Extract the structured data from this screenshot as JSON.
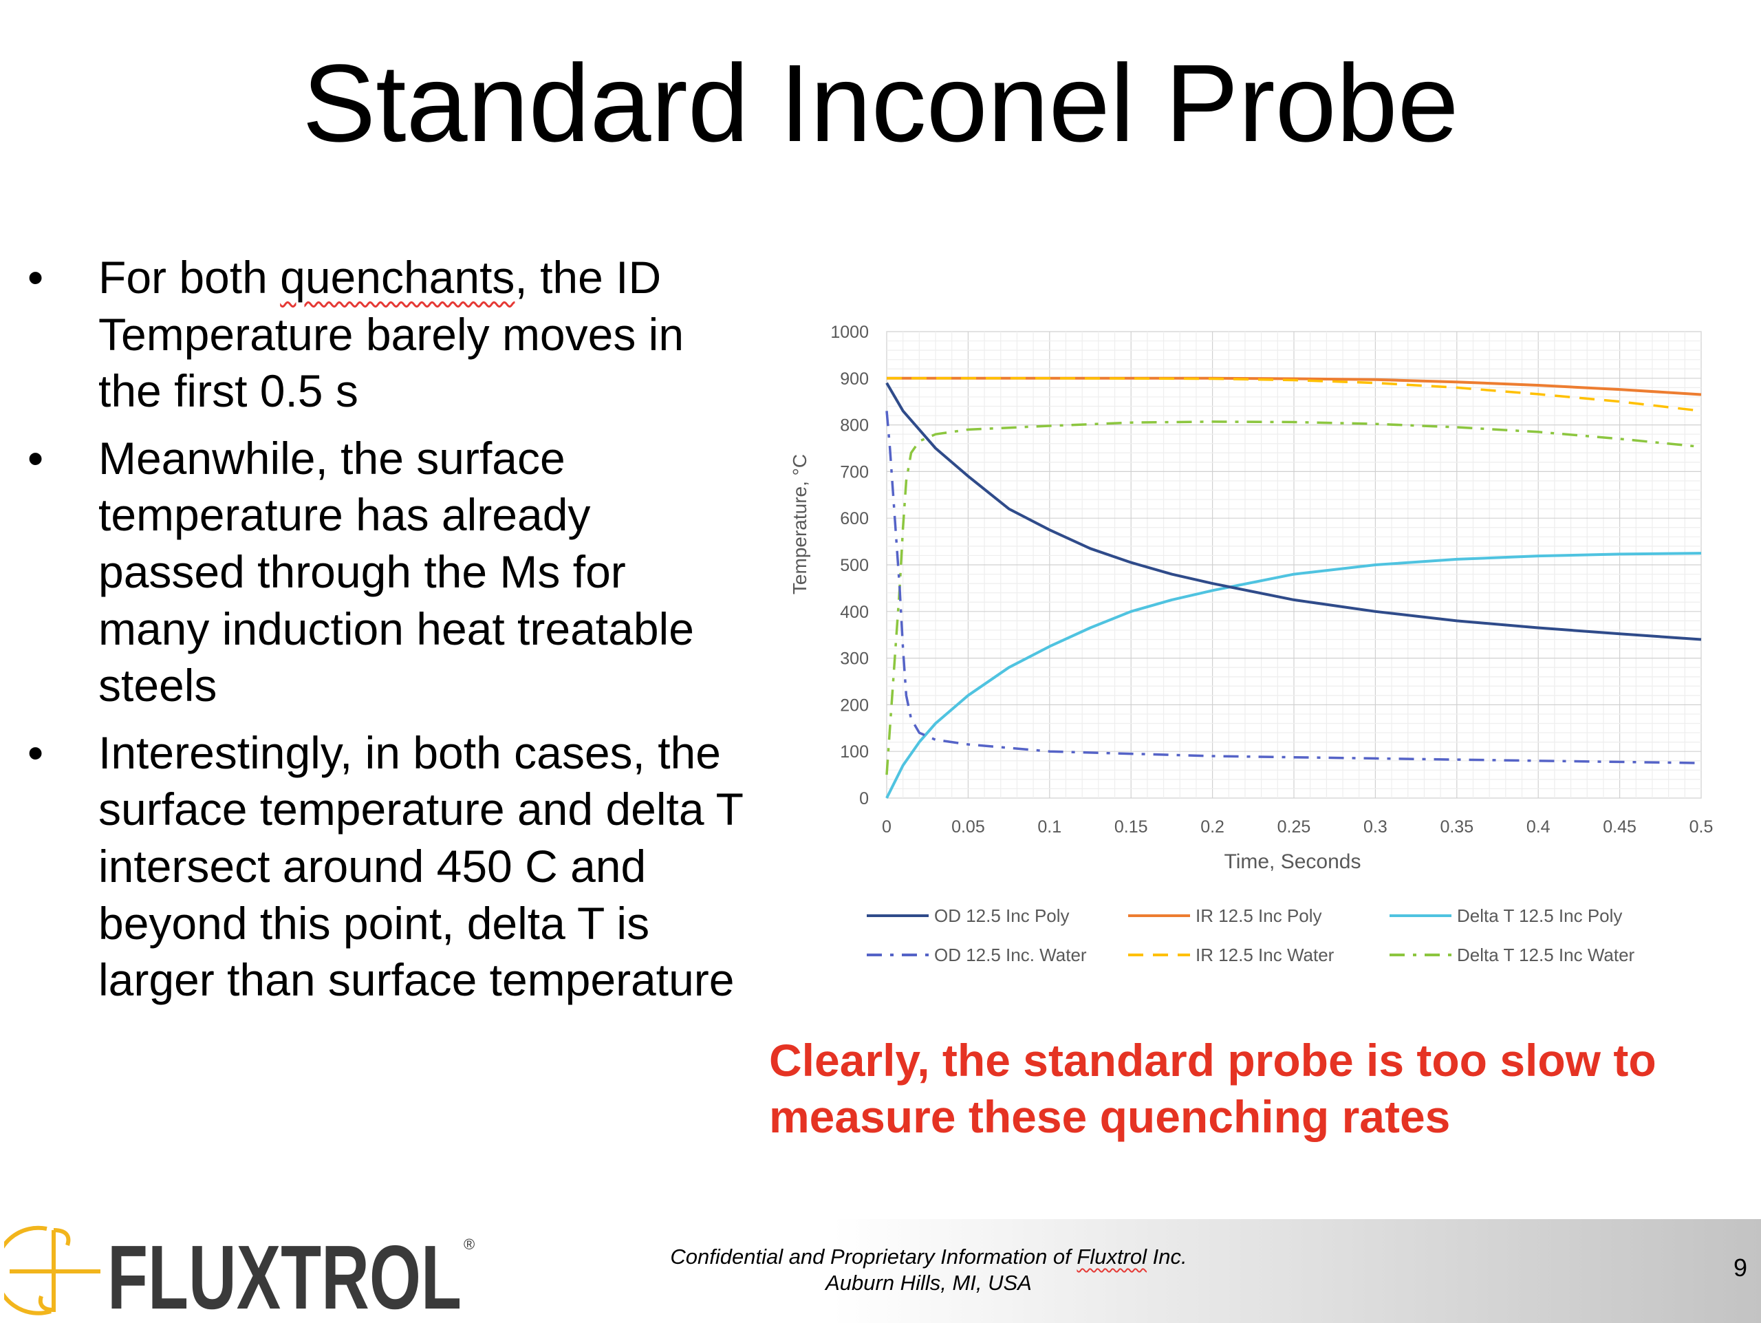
{
  "slide": {
    "title": "Standard Inconel Probe",
    "bullet_marker": "•",
    "bullets": [
      {
        "before": "For both ",
        "flagged": "quenchants",
        "after": ", the ID Temperature barely moves in the first 0.5 s"
      },
      {
        "text": "Meanwhile, the surface temperature has already passed through the Ms for many induction heat treatable steels"
      },
      {
        "text": "Interestingly, in both cases, the surface temperature and delta T intersect around 450 C and beyond this point, delta T is larger than surface temperature"
      }
    ],
    "callout": "Clearly, the standard probe is too slow to measure these quenching rates",
    "page_number": "9"
  },
  "footer": {
    "line1_before": "Confidential and Proprietary Information of ",
    "line1_flagged": "Fluxtrol",
    "line1_after": " Inc.",
    "line2": "Auburn Hills, MI, USA"
  },
  "logo": {
    "text": "FLUXTROL",
    "registered": "®",
    "colors": {
      "mark": "#f2b51c",
      "text": "#3a3a3a"
    }
  },
  "chart_data": {
    "type": "line",
    "title": "",
    "xlabel": "Time, Seconds",
    "ylabel": "Temperature, °C",
    "xlim": [
      0,
      0.5
    ],
    "ylim": [
      0,
      1000
    ],
    "x_ticks": [
      "0",
      "0.05",
      "0.1",
      "0.15",
      "0.2",
      "0.25",
      "0.3",
      "0.35",
      "0.4",
      "0.45",
      "0.5"
    ],
    "y_ticks": [
      "0",
      "100",
      "200",
      "300",
      "400",
      "500",
      "600",
      "700",
      "800",
      "900",
      "1000"
    ],
    "grid": true,
    "legend_position": "bottom",
    "series": [
      {
        "name": "OD 12.5 Inc Poly",
        "color": "#2f4b8a",
        "dash": "solid",
        "x": [
          0,
          0.01,
          0.02,
          0.03,
          0.05,
          0.075,
          0.1,
          0.125,
          0.15,
          0.175,
          0.2,
          0.25,
          0.3,
          0.35,
          0.4,
          0.45,
          0.5
        ],
        "y": [
          890,
          830,
          790,
          750,
          690,
          620,
          575,
          535,
          505,
          480,
          460,
          425,
          400,
          380,
          365,
          352,
          340
        ]
      },
      {
        "name": "IR 12.5 Inc Poly",
        "color": "#ed7d31",
        "dash": "solid",
        "x": [
          0,
          0.05,
          0.1,
          0.15,
          0.2,
          0.25,
          0.3,
          0.35,
          0.4,
          0.45,
          0.5
        ],
        "y": [
          900,
          900,
          900,
          900,
          900,
          899,
          897,
          892,
          885,
          876,
          865
        ]
      },
      {
        "name": "Delta T 12.5 Inc Poly",
        "color": "#4fc3e0",
        "dash": "solid",
        "x": [
          0,
          0.01,
          0.02,
          0.03,
          0.05,
          0.075,
          0.1,
          0.125,
          0.15,
          0.175,
          0.2,
          0.25,
          0.3,
          0.35,
          0.4,
          0.45,
          0.5
        ],
        "y": [
          0,
          70,
          120,
          160,
          220,
          280,
          325,
          365,
          400,
          425,
          445,
          480,
          500,
          512,
          519,
          523,
          525
        ]
      },
      {
        "name": "OD 12.5 Inc. Water",
        "color": "#5563c7",
        "dash": "dashdot",
        "x": [
          0,
          0.002,
          0.005,
          0.008,
          0.01,
          0.012,
          0.015,
          0.02,
          0.03,
          0.05,
          0.1,
          0.2,
          0.3,
          0.4,
          0.5
        ],
        "y": [
          830,
          750,
          600,
          450,
          320,
          220,
          170,
          140,
          125,
          115,
          100,
          90,
          85,
          80,
          75
        ]
      },
      {
        "name": "IR 12.5 Inc Water",
        "color": "#ffc000",
        "dash": "dash",
        "x": [
          0,
          0.1,
          0.2,
          0.25,
          0.3,
          0.35,
          0.4,
          0.45,
          0.5
        ],
        "y": [
          900,
          900,
          899,
          896,
          890,
          880,
          866,
          850,
          830
        ]
      },
      {
        "name": "Delta T 12.5 Inc Water",
        "color": "#8cc63f",
        "dash": "dashdot",
        "x": [
          0,
          0.002,
          0.005,
          0.008,
          0.01,
          0.012,
          0.015,
          0.02,
          0.03,
          0.05,
          0.1,
          0.15,
          0.2,
          0.25,
          0.3,
          0.35,
          0.4,
          0.45,
          0.5
        ],
        "y": [
          50,
          150,
          300,
          450,
          580,
          680,
          740,
          765,
          780,
          790,
          798,
          805,
          807,
          806,
          802,
          795,
          785,
          770,
          753
        ]
      }
    ]
  }
}
